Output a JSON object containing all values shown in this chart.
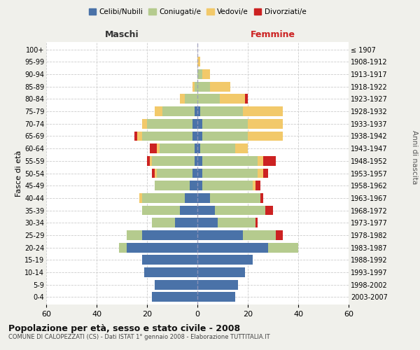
{
  "age_groups_bottom_to_top": [
    "0-4",
    "5-9",
    "10-14",
    "15-19",
    "20-24",
    "25-29",
    "30-34",
    "35-39",
    "40-44",
    "45-49",
    "50-54",
    "55-59",
    "60-64",
    "65-69",
    "70-74",
    "75-79",
    "80-84",
    "85-89",
    "90-94",
    "95-99",
    "100+"
  ],
  "birth_years_bottom_to_top": [
    "2003-2007",
    "1998-2002",
    "1993-1997",
    "1988-1992",
    "1983-1987",
    "1978-1982",
    "1973-1977",
    "1968-1972",
    "1963-1967",
    "1958-1962",
    "1953-1957",
    "1948-1952",
    "1943-1947",
    "1938-1942",
    "1933-1937",
    "1928-1932",
    "1923-1927",
    "1918-1922",
    "1913-1917",
    "1908-1912",
    "≤ 1907"
  ],
  "colors": {
    "celibe": "#4a72a8",
    "coniugato": "#b5cb8e",
    "vedovo": "#f2c96a",
    "divorziato": "#cc2222"
  },
  "male": {
    "celibe": [
      18,
      17,
      21,
      22,
      28,
      22,
      9,
      7,
      5,
      3,
      2,
      1,
      1,
      2,
      2,
      1,
      0,
      0,
      0,
      0,
      0
    ],
    "coniugato": [
      0,
      0,
      0,
      0,
      3,
      6,
      9,
      15,
      17,
      14,
      14,
      17,
      14,
      20,
      18,
      13,
      5,
      1,
      0,
      0,
      0
    ],
    "vedovo": [
      0,
      0,
      0,
      0,
      0,
      0,
      0,
      0,
      1,
      0,
      1,
      1,
      1,
      2,
      2,
      3,
      2,
      1,
      0,
      0,
      0
    ],
    "divorziato": [
      0,
      0,
      0,
      0,
      0,
      0,
      0,
      0,
      0,
      0,
      1,
      1,
      3,
      1,
      0,
      0,
      0,
      0,
      0,
      0,
      0
    ]
  },
  "female": {
    "nubile": [
      15,
      16,
      19,
      22,
      28,
      18,
      8,
      7,
      5,
      2,
      2,
      2,
      1,
      2,
      2,
      1,
      0,
      0,
      0,
      0,
      0
    ],
    "coniugata": [
      0,
      0,
      0,
      0,
      12,
      13,
      15,
      20,
      20,
      20,
      22,
      22,
      14,
      18,
      18,
      17,
      9,
      5,
      2,
      0,
      0
    ],
    "vedova": [
      0,
      0,
      0,
      0,
      0,
      0,
      0,
      0,
      0,
      1,
      2,
      2,
      5,
      14,
      14,
      16,
      10,
      8,
      3,
      1,
      0
    ],
    "divorziata": [
      0,
      0,
      0,
      0,
      0,
      3,
      1,
      3,
      1,
      2,
      2,
      5,
      0,
      0,
      0,
      0,
      1,
      0,
      0,
      0,
      0
    ]
  },
  "xlim": 60,
  "title": "Popolazione per età, sesso e stato civile - 2008",
  "subtitle": "COMUNE DI CALOPEZZATI (CS) - Dati ISTAT 1° gennaio 2008 - Elaborazione TUTTITALIA.IT",
  "xlabel_left": "Maschi",
  "xlabel_right": "Femmine",
  "ylabel_left": "Fasce di età",
  "ylabel_right": "Anni di nascita",
  "legend_labels": [
    "Celibi/Nubili",
    "Coniugati/e",
    "Vedovi/e",
    "Divorziati/e"
  ],
  "background_color": "#f0f0eb",
  "plot_bg": "#ffffff"
}
